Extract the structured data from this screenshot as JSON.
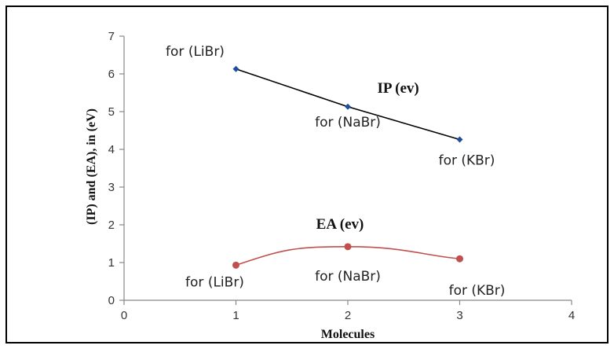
{
  "chart_data": {
    "type": "line",
    "xlabel": "Molecules",
    "ylabel": "(IP) and (EA), in (eV)",
    "xlim": [
      0,
      4
    ],
    "ylim": [
      0,
      7
    ],
    "x_ticks": [
      "0",
      "1",
      "2",
      "3",
      "4"
    ],
    "y_ticks": [
      "0",
      "1",
      "2",
      "3",
      "4",
      "5",
      "6",
      "7"
    ],
    "grid": false,
    "legend": "none",
    "series": [
      {
        "name": "IP (ev)",
        "color": "#000000",
        "marker_color": "#1f4e9c",
        "x": [
          1,
          2,
          3
        ],
        "y": [
          6.13,
          5.13,
          4.26
        ],
        "point_labels": [
          "for (LiBr)",
          "for (NaBr)",
          "for (KBr)"
        ]
      },
      {
        "name": "EA (ev)",
        "color": "#c0504d",
        "marker_color": "#c0504d",
        "x": [
          1,
          2,
          3
        ],
        "y": [
          0.93,
          1.42,
          1.1
        ],
        "point_labels": [
          "for (LiBr)",
          "for (NaBr)",
          "for (KBr)"
        ]
      }
    ]
  }
}
